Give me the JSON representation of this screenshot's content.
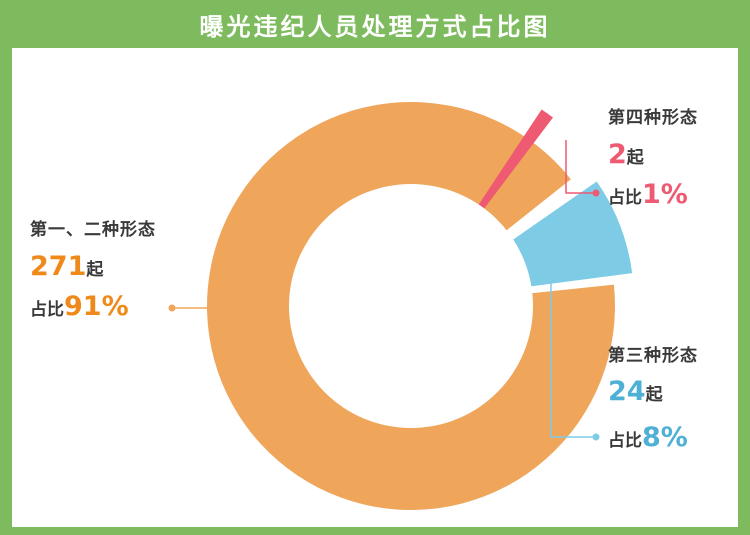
{
  "title": "曝光违纪人员处理方式占比图",
  "colors": {
    "background": "#7dbb5e",
    "panel": "#ffffff",
    "hole": "#ffffff"
  },
  "chart_data": {
    "type": "pie",
    "title": "曝光违纪人员处理方式占比图",
    "donut": true,
    "slices": [
      {
        "name": "第一、二种形态",
        "count": "271",
        "count_unit": "起",
        "percent_prefix": "占比",
        "percent": "91%",
        "value": 271,
        "share": 91,
        "color": "#efa55a",
        "text_color": "#ef8a1a"
      },
      {
        "name": "第三种形态",
        "count": "24",
        "count_unit": "起",
        "percent_prefix": "占比",
        "percent": "8%",
        "value": 24,
        "share": 8,
        "color": "#7ecbe6",
        "text_color": "#4fb0d6"
      },
      {
        "name": "第四种形态",
        "count": "2",
        "count_unit": "起",
        "percent_prefix": "占比",
        "percent": "1%",
        "value": 2,
        "share": 1,
        "color": "#ee5a72",
        "text_color": "#ee5a72"
      }
    ]
  }
}
